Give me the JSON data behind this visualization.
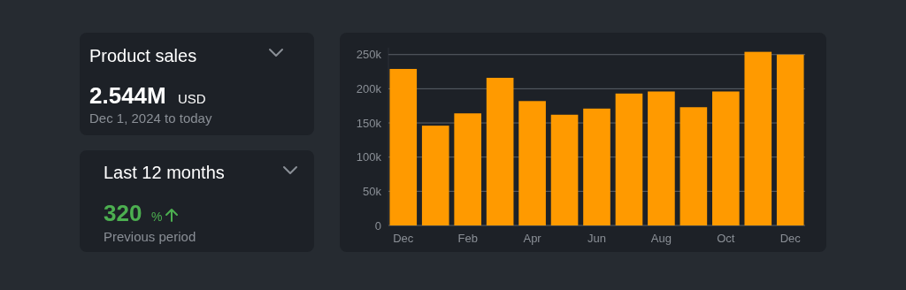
{
  "chart_data": [
    {
      "type": "other",
      "title": "Product sales",
      "annotations": [
        "2.544M",
        "USD",
        "Dec 1, 2024 to today"
      ]
    },
    {
      "type": "other",
      "title": "Last 12 months",
      "annotations": [
        "320",
        "%",
        "Previous period"
      ]
    },
    {
      "type": "bar",
      "categories": [
        "Dec",
        null,
        "Feb",
        null,
        "Apr",
        null,
        "Jun",
        null,
        "Aug",
        null,
        "Oct",
        null,
        "Dec"
      ],
      "values": [
        229000,
        146000,
        164000,
        216000,
        182000,
        162000,
        171000,
        193000,
        196000,
        173000,
        196000,
        254000,
        250000
      ],
      "color": "#ff9a00",
      "ylim": [
        0,
        260000
      ],
      "yticks": [
        0,
        {
          "value": 50000,
          "label": "50k"
        },
        {
          "value": 100000,
          "label": "100k"
        },
        {
          "value": 150000,
          "label": "150k"
        },
        {
          "value": 200000,
          "label": "200k"
        },
        {
          "value": 250000,
          "label": "250k"
        }
      ],
      "grid": "y"
    }
  ]
}
